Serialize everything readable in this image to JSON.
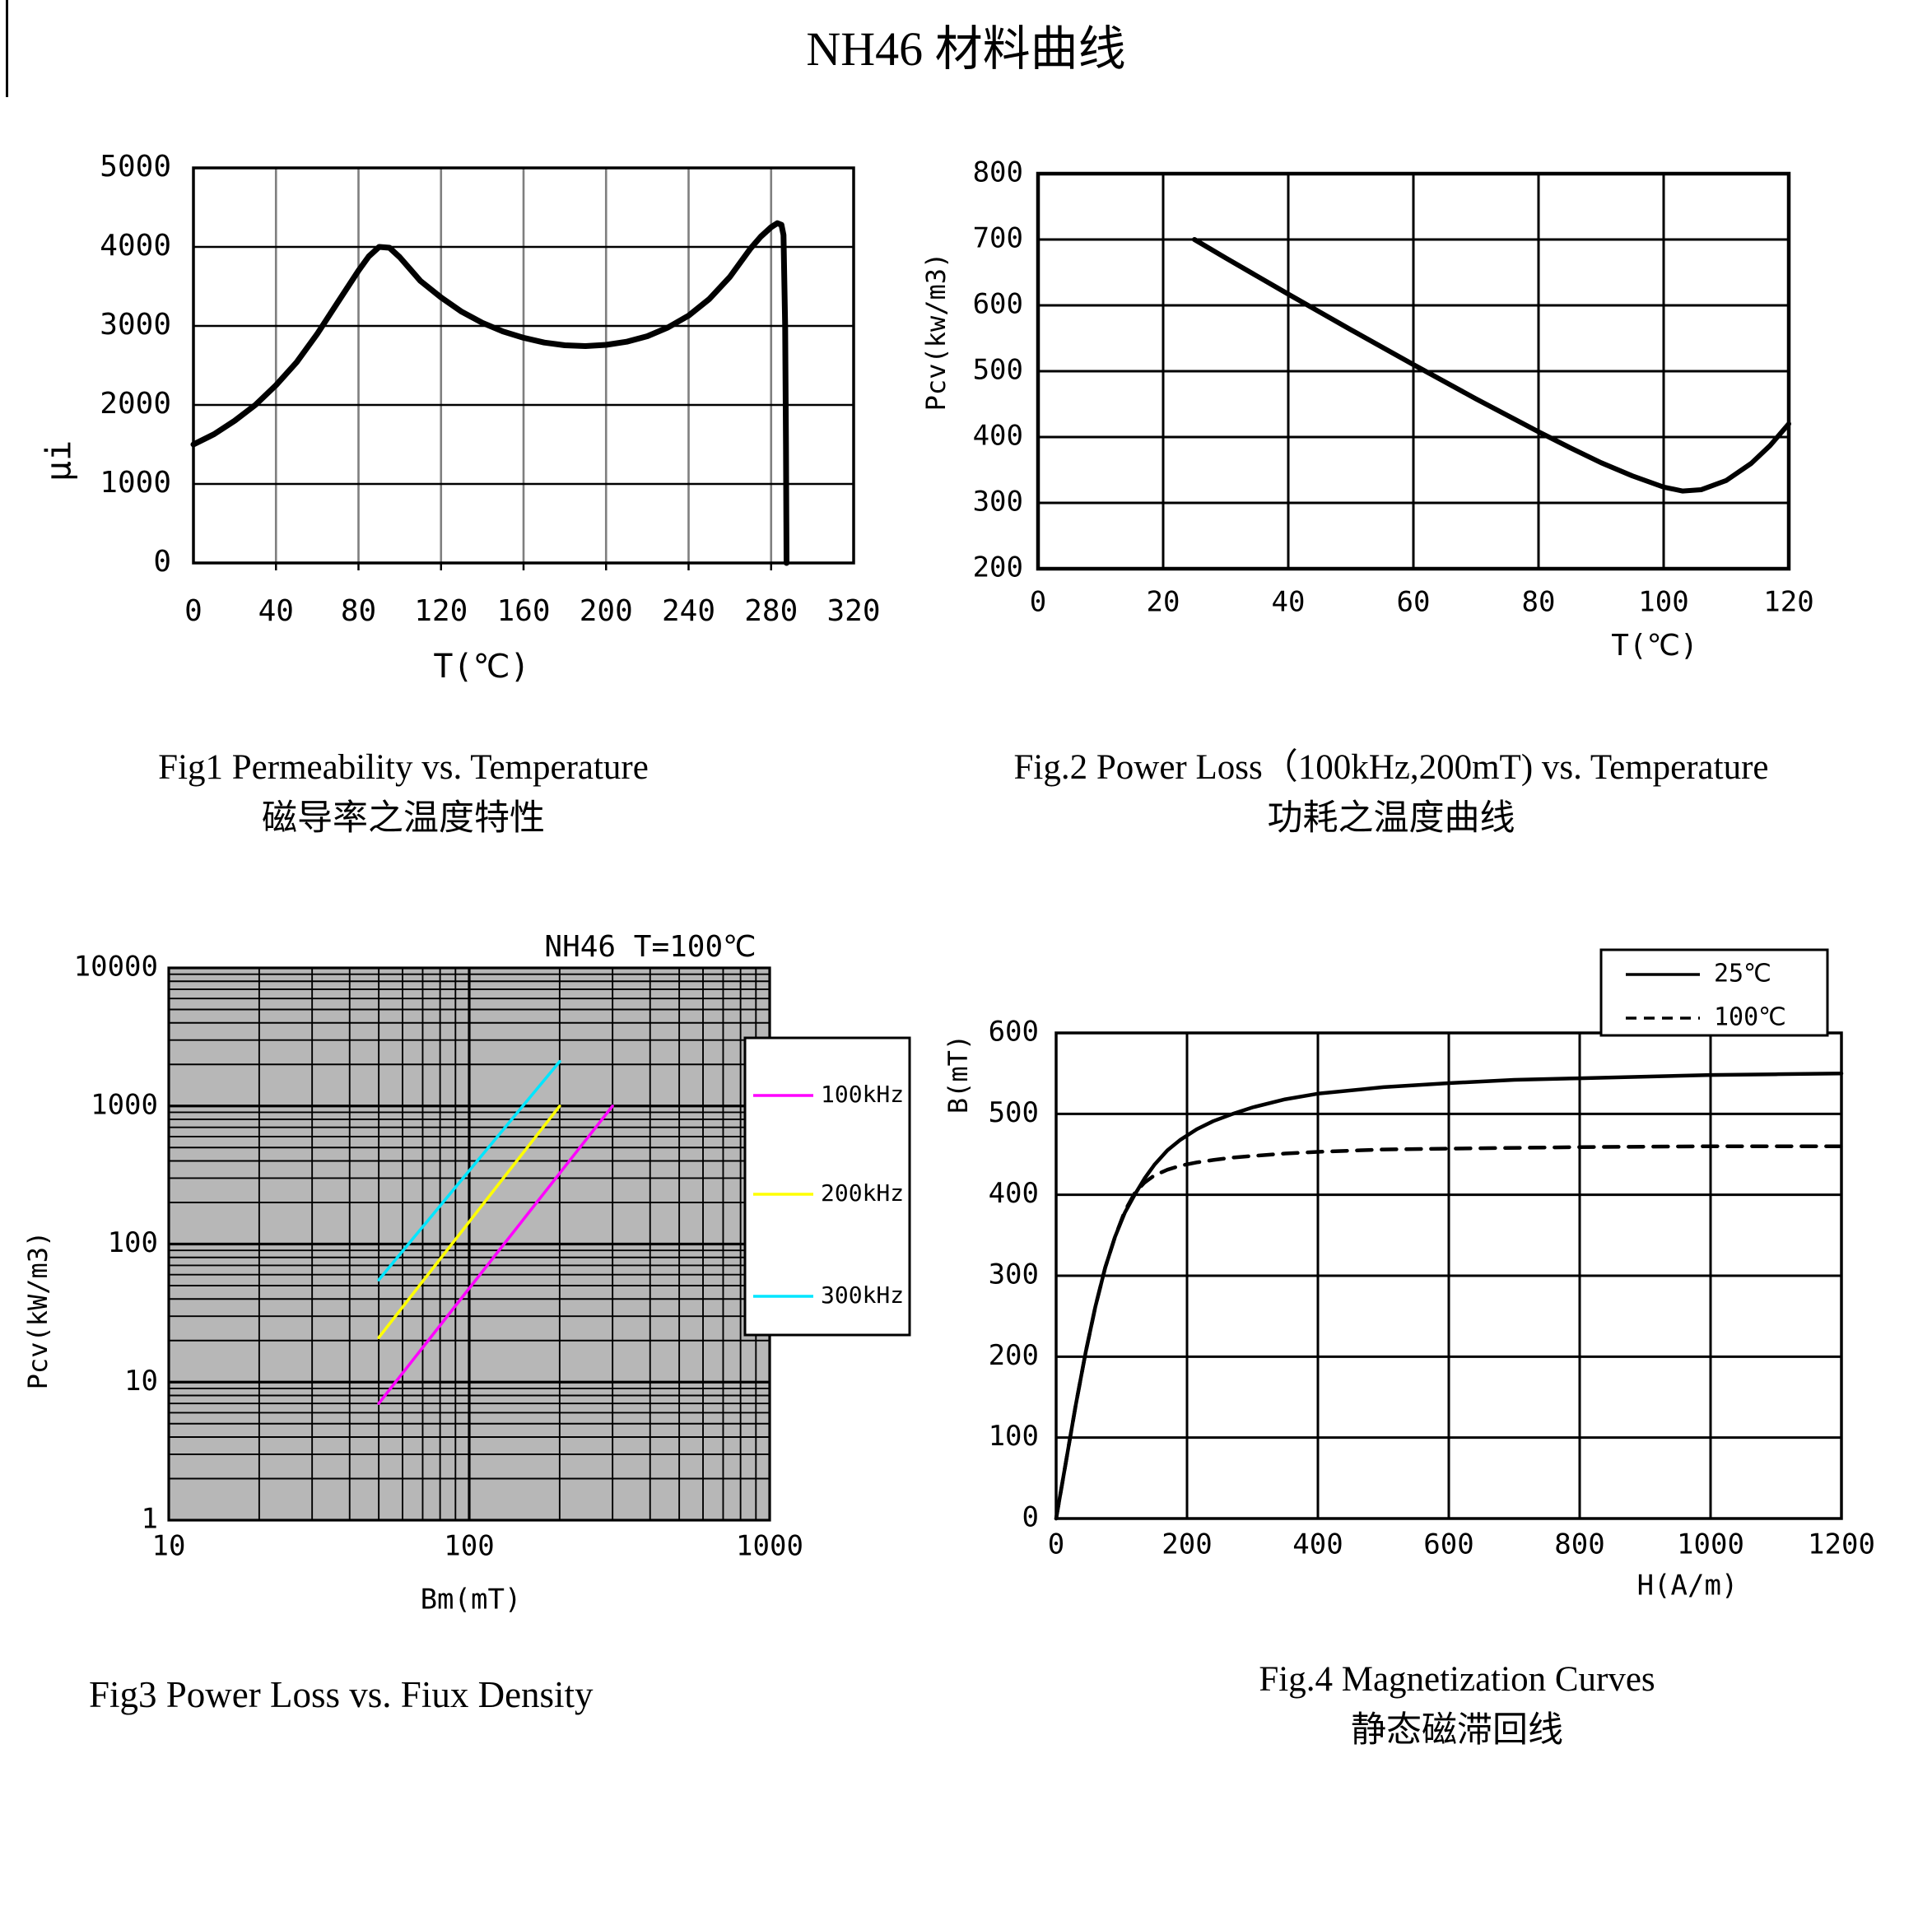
{
  "page_title": "NH46 材料曲线",
  "captions": {
    "fig1_en": "Fig1 Permeability vs. Temperature",
    "fig1_zh": "磁导率之温度特性",
    "fig2_en": "Fig.2 Power Loss（100kHz,200mT) vs. Temperature",
    "fig2_zh": "功耗之温度曲线",
    "fig3_en": "Fig3 Power Loss vs. Fiux Density",
    "fig4_en": "Fig.4 Magnetization Curves",
    "fig4_zh": "静态磁滞回线"
  },
  "chart_data": [
    {
      "id": "fig1",
      "type": "line",
      "title": "",
      "xlabel": "T(℃)",
      "ylabel": "μi",
      "xlim": [
        0,
        320
      ],
      "ylim": [
        0,
        5000
      ],
      "xticks": [
        0,
        40,
        80,
        120,
        160,
        200,
        240,
        280,
        320
      ],
      "yticks": [
        0,
        1000,
        2000,
        3000,
        4000,
        5000
      ],
      "grid": true,
      "series": [
        {
          "name": "permeability",
          "color": "#000000",
          "points": [
            [
              0,
              1500
            ],
            [
              10,
              1630
            ],
            [
              20,
              1800
            ],
            [
              30,
              2000
            ],
            [
              40,
              2250
            ],
            [
              50,
              2540
            ],
            [
              60,
              2900
            ],
            [
              70,
              3300
            ],
            [
              80,
              3700
            ],
            [
              85,
              3880
            ],
            [
              90,
              4000
            ],
            [
              95,
              3990
            ],
            [
              100,
              3870
            ],
            [
              105,
              3720
            ],
            [
              110,
              3570
            ],
            [
              120,
              3360
            ],
            [
              130,
              3180
            ],
            [
              140,
              3040
            ],
            [
              150,
              2930
            ],
            [
              160,
              2850
            ],
            [
              170,
              2790
            ],
            [
              180,
              2755
            ],
            [
              190,
              2745
            ],
            [
              200,
              2760
            ],
            [
              210,
              2800
            ],
            [
              220,
              2870
            ],
            [
              230,
              2980
            ],
            [
              240,
              3130
            ],
            [
              250,
              3340
            ],
            [
              260,
              3620
            ],
            [
              270,
              3980
            ],
            [
              275,
              4130
            ],
            [
              280,
              4250
            ],
            [
              283,
              4300
            ],
            [
              285,
              4280
            ],
            [
              286,
              4150
            ],
            [
              286.8,
              3000
            ],
            [
              287.2,
              1500
            ],
            [
              287.5,
              0
            ]
          ]
        }
      ]
    },
    {
      "id": "fig2",
      "type": "line",
      "title": "",
      "xlabel": "T(℃)",
      "ylabel": "Pcv(kw/m3)",
      "xlim": [
        0,
        120
      ],
      "ylim": [
        200,
        800
      ],
      "xticks": [
        0,
        20,
        40,
        60,
        80,
        100,
        120
      ],
      "yticks": [
        200,
        300,
        400,
        500,
        600,
        700,
        800
      ],
      "grid": true,
      "series": [
        {
          "name": "power-loss-100kHz-200mT",
          "color": "#000000",
          "points": [
            [
              25,
              700
            ],
            [
              30,
              672
            ],
            [
              40,
              617
            ],
            [
              50,
              563
            ],
            [
              60,
              510
            ],
            [
              70,
              458
            ],
            [
              80,
              408
            ],
            [
              85,
              384
            ],
            [
              90,
              361
            ],
            [
              95,
              341
            ],
            [
              100,
              324
            ],
            [
              103,
              318
            ],
            [
              106,
              320
            ],
            [
              110,
              334
            ],
            [
              114,
              360
            ],
            [
              117,
              387
            ],
            [
              120,
              420
            ]
          ]
        }
      ]
    },
    {
      "id": "fig3",
      "type": "line",
      "title": "NH46  T=100℃",
      "xlabel": "Bm(mT)",
      "ylabel": "Pcv(kW/m3)",
      "xscale": "log",
      "yscale": "log",
      "xlim": [
        10,
        1000
      ],
      "ylim": [
        1,
        10000
      ],
      "xticks": [
        10,
        100,
        1000
      ],
      "yticks": [
        1,
        10,
        100,
        1000,
        10000
      ],
      "grid": true,
      "plot_bg": "#b7b7b7",
      "legend_position": "right-overlap",
      "legend": [
        {
          "label": "100kHz",
          "color": "#ff00ff"
        },
        {
          "label": "200kHz",
          "color": "#ffff00"
        },
        {
          "label": "300kHz",
          "color": "#00e6ff"
        }
      ],
      "series": [
        {
          "name": "100kHz",
          "color": "#ff00ff",
          "points": [
            [
              50,
              7
            ],
            [
              300,
              1000
            ]
          ]
        },
        {
          "name": "200kHz",
          "color": "#ffff00",
          "points": [
            [
              50,
              21
            ],
            [
              200,
              1000
            ]
          ]
        },
        {
          "name": "300kHz",
          "color": "#00e6ff",
          "points": [
            [
              50,
              55
            ],
            [
              200,
              2100
            ]
          ]
        }
      ]
    },
    {
      "id": "fig4",
      "type": "line",
      "title": "",
      "xlabel": "H(A/m)",
      "ylabel": "B(mT)",
      "xlim": [
        0,
        1200
      ],
      "ylim": [
        0,
        600
      ],
      "xticks": [
        0,
        200,
        400,
        600,
        800,
        1000,
        1200
      ],
      "yticks": [
        0,
        100,
        200,
        300,
        400,
        500,
        600
      ],
      "grid": true,
      "legend_position": "top-right",
      "legend": [
        {
          "label": "25℃",
          "color": "#000000"
        },
        {
          "label": "100℃",
          "color": "#000000",
          "dash": "13,9"
        }
      ],
      "series": [
        {
          "name": "25C",
          "color": "#000000",
          "points": [
            [
              0,
              0
            ],
            [
              15,
              70
            ],
            [
              30,
              140
            ],
            [
              45,
              205
            ],
            [
              60,
              262
            ],
            [
              75,
              310
            ],
            [
              90,
              348
            ],
            [
              105,
              378
            ],
            [
              120,
              400
            ],
            [
              135,
              420
            ],
            [
              150,
              437
            ],
            [
              170,
              455
            ],
            [
              190,
              468
            ],
            [
              215,
              481
            ],
            [
              240,
              491
            ],
            [
              270,
              500
            ],
            [
              300,
              508
            ],
            [
              350,
              518
            ],
            [
              400,
              525
            ],
            [
              500,
              533
            ],
            [
              600,
              538
            ],
            [
              700,
              542
            ],
            [
              800,
              544
            ],
            [
              900,
              546
            ],
            [
              1000,
              548
            ],
            [
              1100,
              549
            ],
            [
              1200,
              550
            ]
          ]
        },
        {
          "name": "100C",
          "color": "#000000",
          "dash": "18,12",
          "points": [
            [
              0,
              0
            ],
            [
              15,
              70
            ],
            [
              30,
              140
            ],
            [
              45,
              205
            ],
            [
              60,
              262
            ],
            [
              75,
              310
            ],
            [
              90,
              348
            ],
            [
              105,
              380
            ],
            [
              120,
              402
            ],
            [
              135,
              415
            ],
            [
              150,
              424
            ],
            [
              170,
              431
            ],
            [
              190,
              436
            ],
            [
              215,
              440
            ],
            [
              240,
              443
            ],
            [
              270,
              446
            ],
            [
              300,
              448
            ],
            [
              350,
              451
            ],
            [
              400,
              453
            ],
            [
              500,
              456
            ],
            [
              600,
              457
            ],
            [
              800,
              459
            ],
            [
              1000,
              460
            ],
            [
              1200,
              460
            ]
          ]
        }
      ]
    }
  ]
}
